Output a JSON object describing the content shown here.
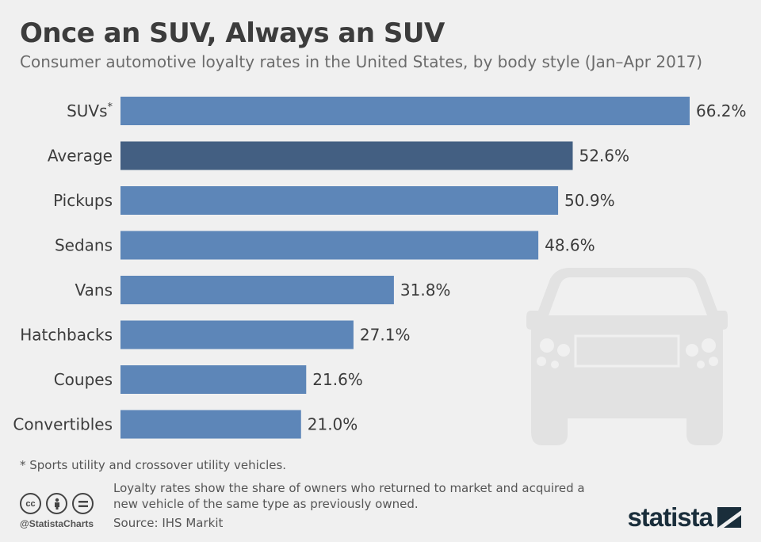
{
  "header": {
    "title": "Once an SUV, Always an SUV",
    "subtitle": "Consumer automotive loyalty rates in the United States, by body style (Jan–Apr 2017)"
  },
  "chart_data": {
    "type": "bar",
    "orientation": "horizontal",
    "categories": [
      "SUVs*",
      "Average",
      "Pickups",
      "Sedans",
      "Vans",
      "Hatchbacks",
      "Coupes",
      "Convertibles"
    ],
    "values": [
      66.2,
      52.6,
      50.9,
      48.6,
      31.8,
      27.1,
      21.6,
      21.0
    ],
    "value_labels": [
      "66.2%",
      "52.6%",
      "50.9%",
      "48.6%",
      "31.8%",
      "27.1%",
      "21.6%",
      "21.0%"
    ],
    "highlight_category": "Average",
    "unit": "%",
    "xlim": [
      0,
      66.2
    ],
    "grid": false,
    "legend": "none",
    "colors": {
      "bar": "#5d86b8",
      "highlight": "#435f82",
      "background": "#f0f0f0",
      "car_illustration": "#e2e2e2"
    }
  },
  "footer": {
    "footnote": "* Sports utility and crossover utility vehicles.",
    "note": "Loyalty rates show the share of owners who returned to market and acquired a new vehicle of the same type as previously owned.",
    "source": "Source: IHS Markit",
    "handle": "@StatistaCharts",
    "brand": "statista",
    "license_icons": [
      "creative-commons-icon",
      "attribution-icon",
      "no-derivatives-icon"
    ]
  }
}
